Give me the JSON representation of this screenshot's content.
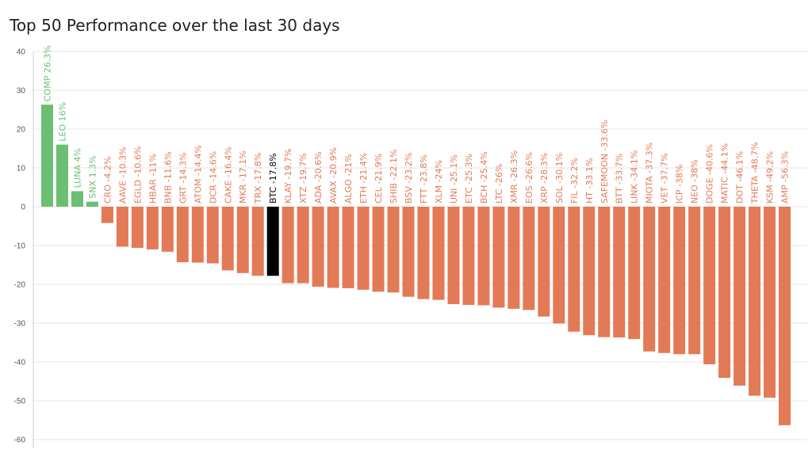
{
  "title": "Top 50 Performance over the last 30 days",
  "colors": {
    "positive": "#6bbf73",
    "negative": "#e27a56",
    "highlight": "#000000",
    "grid": "#e6e6e6",
    "axis_text": "#555555"
  },
  "chart_data": {
    "type": "bar",
    "title": "Top 50 Performance over the last 30 days",
    "xlabel": "",
    "ylabel": "",
    "ylim": [
      -60,
      40
    ],
    "yticks": [
      40,
      30,
      20,
      10,
      0,
      -10,
      -20,
      -30,
      -40,
      -50,
      -60
    ],
    "grid": true,
    "highlight_category": "BTC",
    "categories": [
      "COMP",
      "LEO",
      "LUNA",
      "SNX",
      "CRO",
      "AAVE",
      "EGLD",
      "HBAR",
      "BNB",
      "GRT",
      "ATOM",
      "DCR",
      "CAKE",
      "MKR",
      "TRX",
      "BTC",
      "KLAY",
      "XTZ",
      "ADA",
      "AVAX",
      "ALGO",
      "ETH",
      "CEL",
      "SHIB",
      "BSV",
      "FTT",
      "XLM",
      "UNI",
      "ETC",
      "BCH",
      "LTC",
      "XMR",
      "EOS",
      "XRP",
      "SOL",
      "FIL",
      "HT",
      "SAFEMOON",
      "BTT",
      "LINK",
      "MIOTA",
      "VET",
      "ICP",
      "NEO",
      "DOGE",
      "MATIC",
      "DOT",
      "THETA",
      "KSM",
      "AMP"
    ],
    "values": [
      26.3,
      16,
      4,
      1.3,
      -4.2,
      -10.3,
      -10.6,
      -11,
      -11.6,
      -14.3,
      -14.4,
      -14.6,
      -16.4,
      -17.1,
      -17.8,
      -17.8,
      -19.7,
      -19.7,
      -20.6,
      -20.9,
      -21,
      -21.4,
      -21.9,
      -22.1,
      -23.2,
      -23.8,
      -24,
      -25.1,
      -25.3,
      -25.4,
      -26,
      -26.3,
      -26.6,
      -28.3,
      -30.1,
      -32.2,
      -33.1,
      -33.6,
      -33.7,
      -34.1,
      -37.3,
      -37.7,
      -38,
      -38,
      -40.6,
      -44.1,
      -46.1,
      -48.7,
      -49.2,
      -56.3
    ],
    "labels": [
      "COMP 26.3%",
      "LEO 16%",
      "LUNA 4%",
      "SNX 1.3%",
      "CRO -4.2%",
      "AAVE -10.3%",
      "EGLD -10.6%",
      "HBAR -11%",
      "BNB -11.6%",
      "GRT -14.3%",
      "ATOM -14.4%",
      "DCR -14.6%",
      "CAKE -16.4%",
      "MKR -17.1%",
      "TRX -17.8%",
      "BTC -17.8%",
      "KLAY -19.7%",
      "XTZ -19.7%",
      "ADA -20.6%",
      "AVAX -20.9%",
      "ALGO -21%",
      "ETH -21.4%",
      "CEL -21.9%",
      "SHIB -22.1%",
      "BSV -23.2%",
      "FTT -23.8%",
      "XLM -24%",
      "UNI -25.1%",
      "ETC -25.3%",
      "BCH -25.4%",
      "LTC -26%",
      "XMR -26.3%",
      "EOS -26.6%",
      "XRP -28.3%",
      "SOL -30.1%",
      "FIL -32.2%",
      "HT -33.1%",
      "SAFEMOON -33.6%",
      "BTT -33.7%",
      "LINK -34.1%",
      "MIOTA -37.3%",
      "VET -37.7%",
      "ICP -38%",
      "NEO -38%",
      "DOGE -40.6%",
      "MATIC -44.1%",
      "DOT -46.1%",
      "THETA -48.7%",
      "KSM -49.2%",
      "AMP -56.3%"
    ]
  }
}
